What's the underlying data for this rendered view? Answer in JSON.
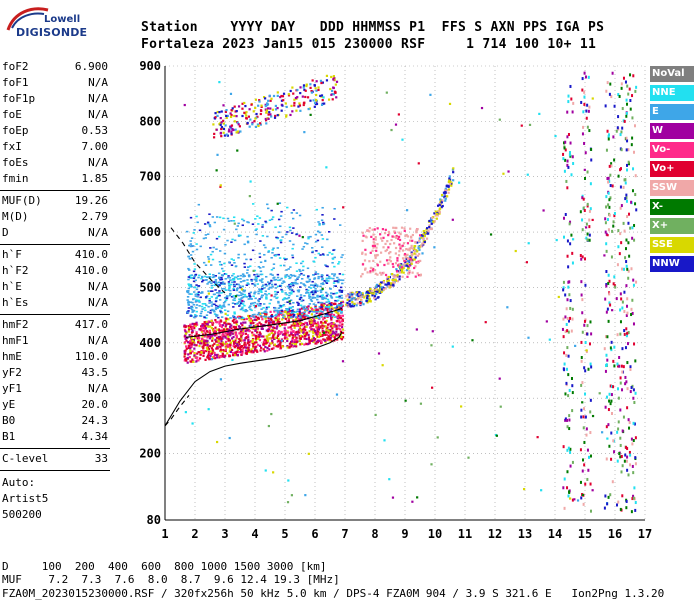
{
  "logo": {
    "name": "Lowell",
    "sub": "DIGISONDE"
  },
  "header": {
    "line1": "Station    YYYY DAY   DDD HHMMSS P1  FFS S AXN PPS IGA PS",
    "line2": "Fortaleza 2023 Jan15 015 230000 RSF     1 714 100 10+ 11"
  },
  "params": {
    "group1": [
      {
        "k": "foF2",
        "v": "6.900"
      },
      {
        "k": "foF1",
        "v": "N/A"
      },
      {
        "k": "foF1p",
        "v": "N/A"
      },
      {
        "k": "foE",
        "v": "N/A"
      },
      {
        "k": "foEp",
        "v": "0.53"
      },
      {
        "k": "fxI",
        "v": "7.00"
      },
      {
        "k": "foEs",
        "v": "N/A"
      },
      {
        "k": "fmin",
        "v": "1.85"
      }
    ],
    "group2": [
      {
        "k": "MUF(D)",
        "v": "19.26"
      },
      {
        "k": "M(D)",
        "v": "2.79"
      },
      {
        "k": "D",
        "v": "N/A"
      }
    ],
    "group3": [
      {
        "k": "h`F",
        "v": "410.0"
      },
      {
        "k": "h`F2",
        "v": "410.0"
      },
      {
        "k": "h`E",
        "v": "N/A"
      },
      {
        "k": "h`Es",
        "v": "N/A"
      }
    ],
    "group4": [
      {
        "k": "hmF2",
        "v": "417.0"
      },
      {
        "k": "hmF1",
        "v": "N/A"
      },
      {
        "k": "hmE",
        "v": "110.0"
      },
      {
        "k": "yF2",
        "v": "43.5"
      },
      {
        "k": "yF1",
        "v": "N/A"
      },
      {
        "k": "yE",
        "v": "20.0"
      },
      {
        "k": "B0",
        "v": "24.3"
      },
      {
        "k": "B1",
        "v": "4.34"
      }
    ],
    "clevel": {
      "k": "C-level",
      "v": "33"
    },
    "auto": [
      "Auto:",
      "Artist5",
      "500200"
    ]
  },
  "footer": {
    "dline": "D     100  200  400  600  800 1000 1500 3000 [km]",
    "mufline": "MUF    7.2  7.3  7.6  8.0  8.7  9.6 12.4 19.3 [MHz]",
    "fileline": "FZA0M_2023015230000.RSF / 320fx256h 50 kHz 5.0 km / DPS-4 FZA0M 904 / 3.9 S 321.6 E   Ion2Png 1.3.20"
  },
  "legend": [
    {
      "label": "NoVal",
      "color": "#7f7f7f"
    },
    {
      "label": "NNE",
      "color": "#22e0f0"
    },
    {
      "label": "E",
      "color": "#3ea6e8"
    },
    {
      "label": "W",
      "color": "#a000a0"
    },
    {
      "label": "Vo-",
      "color": "#ff2a8a"
    },
    {
      "label": "Vo+",
      "color": "#e00030"
    },
    {
      "label": "SSW",
      "color": "#f0a8a8"
    },
    {
      "label": "X-",
      "color": "#007a00"
    },
    {
      "label": "X+",
      "color": "#70b060"
    },
    {
      "label": "SSE",
      "color": "#d8d800"
    },
    {
      "label": "NNW",
      "color": "#1818c8"
    }
  ],
  "chart_data": {
    "type": "scatter",
    "xlabel": "",
    "ylabel": "",
    "xlim": [
      1,
      17
    ],
    "ylim": [
      80,
      900
    ],
    "x_ticks": [
      1,
      2,
      3,
      4,
      5,
      6,
      7,
      8,
      9,
      10,
      11,
      12,
      13,
      14,
      15,
      16,
      17
    ],
    "y_ticks": [
      80,
      200,
      300,
      400,
      500,
      600,
      700,
      800,
      900
    ],
    "grid": true,
    "profile": {
      "x": [
        1.0,
        1.5,
        2.0,
        2.5,
        3.0,
        3.5,
        4.0,
        4.5,
        5.0,
        5.5,
        6.0,
        6.5,
        6.8,
        6.9
      ],
      "y": [
        250,
        295,
        330,
        348,
        358,
        363,
        367,
        371,
        375,
        382,
        390,
        400,
        410,
        420
      ]
    },
    "profile_dashed": {
      "x": [
        1.0,
        1.2,
        1.5,
        1.8
      ],
      "y": [
        250,
        262,
        285,
        305
      ]
    },
    "trace_model": {
      "x": [
        1.7,
        2.5,
        3.5,
        4.5,
        5.5,
        6.3,
        6.9
      ],
      "y": [
        410,
        415,
        425,
        432,
        440,
        452,
        462
      ]
    },
    "upper_dashed": {
      "x": [
        1.2,
        1.6,
        2.0,
        2.6,
        3.0
      ],
      "y": [
        608,
        580,
        545,
        510,
        490
      ]
    },
    "noise_columns": [
      14.4,
      15.0,
      15.8,
      16.2,
      16.5
    ]
  }
}
